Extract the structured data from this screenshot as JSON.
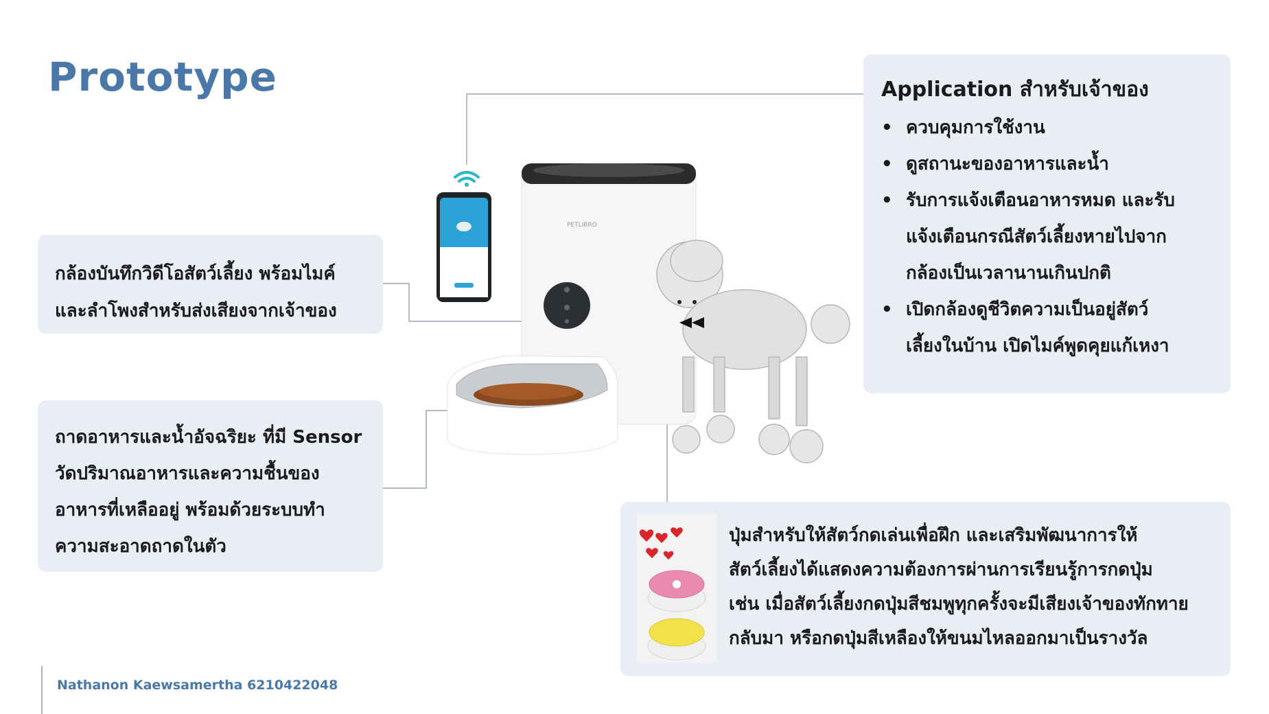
{
  "slide": {
    "title": "Prototype",
    "footer": "Nathanon Kaewsamertha 6210422048"
  },
  "camera_card": {
    "lines": [
      "กล้องบันทึกวิดีโอสัตว์เลี้ยง พร้อมไมค์",
      "และลำโพงสำหรับส่งเสียงจากเจ้าของ"
    ]
  },
  "bowl_card": {
    "lines": [
      "ถาดอาหารและน้ำอัจฉริยะ ที่มี Sensor",
      "วัดปริมาณอาหารและความชื้นของ",
      "อาหารที่เหลืออยู่ พร้อมด้วยระบบทำ",
      "ความสะอาดถาดในตัว"
    ]
  },
  "app_card": {
    "title": "Application สำหรับเจ้าของ",
    "bullet": "•",
    "items": [
      [
        "ควบคุมการใช้งาน"
      ],
      [
        "ดูสถานะของอาหารและน้ำ"
      ],
      [
        "รับการแจ้งเตือนอาหารหมด และรับ",
        "แจ้งเตือนกรณีสัตว์เลี้ยงหายไปจาก",
        "กล้องเป็นเวลานานเกินปกติ"
      ],
      [
        "เปิดกล้องดูชีวิตความเป็นอยู่สัตว์",
        "เลี้ยงในบ้าน เปิดไมค์พูดคุยแก้เหงา"
      ]
    ]
  },
  "buttons_card": {
    "lines": [
      "ปุ่มสำหรับให้สัตว์กดเล่นเพื่อฝึก และเสริมพัฒนาการให้",
      "สัตว์เลี้ยงได้แสดงความต้องการผ่านการเรียนรู้การกดปุ่ม",
      "เช่น เมื่อสัตว์เลี้ยงกดปุ่มสีชมพูทุกครั้งจะมีเสียงเจ้าของทักทาย",
      "กลับมา หรือกดปุ่มสีเหลืองให้ขนมไหลออกมาเป็นรางวัล"
    ]
  },
  "product": {
    "brand": "PETLIBRO"
  },
  "colors": {
    "title": "#4a78a8",
    "card_bg": "#e9edf4",
    "wifi": "#29b6c9",
    "phone_screen": "#2ba3d6",
    "pink_button": "#e98bb0",
    "yellow_button": "#f2e14b",
    "heart": "#d9252b"
  },
  "icons": [
    "wifi-icon",
    "smartphone-icon",
    "pet-feeder-illustration",
    "poodle-illustration",
    "pet-button-photo",
    "heart-icon"
  ]
}
